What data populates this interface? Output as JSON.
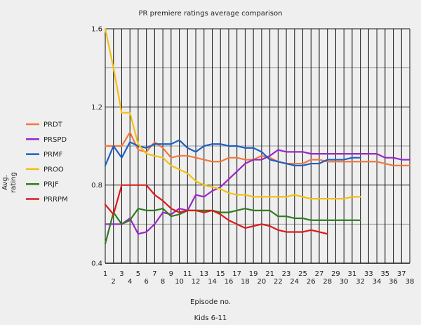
{
  "chart_data": {
    "type": "line",
    "title": "PR premiere ratings average comparison",
    "subtitle": "Kids 6-11",
    "xlabel": "Episode no.",
    "ylabel": "Avg. rating",
    "xlim": [
      1,
      38
    ],
    "ylim": [
      0.4,
      1.6
    ],
    "yticks": [
      0.4,
      0.8,
      1.2,
      1.6
    ],
    "ytick_labels": [
      "0.4",
      "0.8",
      "1.2",
      "1.6"
    ],
    "minor_y_gridlines": [
      0.6,
      1.0,
      1.4
    ],
    "x_ticks_upper_row": [
      1,
      3,
      5,
      7,
      9,
      11,
      13,
      15,
      17,
      19,
      21,
      23,
      25,
      27,
      29,
      31,
      33,
      35,
      37
    ],
    "x_ticks_lower_row": [
      2,
      4,
      6,
      8,
      10,
      12,
      14,
      16,
      18,
      20,
      22,
      24,
      26,
      28,
      30,
      32,
      34,
      36,
      38
    ],
    "grid": true,
    "legend_position": "left",
    "series": [
      {
        "name": "PRDT",
        "color": "#f4773a",
        "x": [
          1,
          2,
          3,
          4,
          5,
          6,
          7,
          8,
          9,
          10,
          11,
          12,
          13,
          14,
          15,
          16,
          17,
          18,
          19,
          20,
          21,
          22,
          23,
          24,
          25,
          26,
          27,
          28,
          29,
          30,
          31,
          32,
          33,
          34,
          35,
          36,
          37,
          38
        ],
        "values": [
          1.0,
          1.0,
          1.0,
          1.07,
          0.98,
          0.97,
          1.02,
          0.99,
          0.94,
          0.95,
          0.95,
          0.94,
          0.93,
          0.92,
          0.92,
          0.94,
          0.94,
          0.93,
          0.93,
          0.95,
          0.94,
          0.92,
          0.91,
          0.91,
          0.91,
          0.93,
          0.93,
          0.92,
          0.92,
          0.92,
          0.92,
          0.92,
          0.92,
          0.92,
          0.91,
          0.9,
          0.9,
          0.9
        ]
      },
      {
        "name": "PRSPD",
        "color": "#9b27c8",
        "x": [
          1,
          2,
          3,
          4,
          5,
          6,
          7,
          8,
          9,
          10,
          11,
          12,
          13,
          14,
          15,
          16,
          17,
          18,
          19,
          20,
          21,
          22,
          23,
          24,
          25,
          26,
          27,
          28,
          29,
          30,
          31,
          32,
          33,
          34,
          35,
          36,
          37,
          38
        ],
        "values": [
          0.6,
          0.6,
          0.6,
          0.63,
          0.55,
          0.56,
          0.6,
          0.66,
          0.65,
          0.68,
          0.67,
          0.75,
          0.74,
          0.77,
          0.79,
          0.83,
          0.87,
          0.91,
          0.93,
          0.93,
          0.95,
          0.98,
          0.97,
          0.97,
          0.97,
          0.96,
          0.96,
          0.96,
          0.96,
          0.96,
          0.96,
          0.96,
          0.96,
          0.96,
          0.94,
          0.94,
          0.93,
          0.93
        ]
      },
      {
        "name": "PRMF",
        "color": "#1e5fc4",
        "x": [
          1,
          2,
          3,
          4,
          5,
          6,
          7,
          8,
          9,
          10,
          11,
          12,
          13,
          14,
          15,
          16,
          17,
          18,
          19,
          20,
          21,
          22,
          23,
          24,
          25,
          26,
          27,
          28,
          29,
          30,
          31,
          32
        ],
        "values": [
          0.9,
          1.0,
          0.94,
          1.02,
          1.0,
          0.99,
          1.01,
          1.01,
          1.01,
          1.03,
          0.99,
          0.97,
          1.0,
          1.01,
          1.01,
          1.0,
          1.0,
          0.99,
          0.99,
          0.97,
          0.93,
          0.92,
          0.91,
          0.9,
          0.9,
          0.91,
          0.91,
          0.93,
          0.93,
          0.93,
          0.94,
          0.94
        ]
      },
      {
        "name": "PROO",
        "color": "#f2c014",
        "x": [
          1,
          2,
          3,
          4,
          5,
          6,
          7,
          8,
          9,
          10,
          11,
          12,
          13,
          14,
          15,
          16,
          17,
          18,
          19,
          20,
          21,
          22,
          23,
          24,
          25,
          26,
          27,
          28,
          29,
          30,
          31,
          32
        ],
        "values": [
          1.6,
          1.4,
          1.17,
          1.17,
          1.01,
          0.96,
          0.95,
          0.94,
          0.9,
          0.88,
          0.86,
          0.82,
          0.8,
          0.79,
          0.78,
          0.76,
          0.75,
          0.75,
          0.74,
          0.74,
          0.74,
          0.74,
          0.74,
          0.75,
          0.74,
          0.73,
          0.73,
          0.73,
          0.73,
          0.73,
          0.74,
          0.74
        ]
      },
      {
        "name": "PRJF",
        "color": "#2f7d1e",
        "x": [
          1,
          2,
          3,
          4,
          5,
          6,
          7,
          8,
          9,
          10,
          11,
          12,
          13,
          14,
          15,
          16,
          17,
          18,
          19,
          20,
          21,
          22,
          23,
          24,
          25,
          26,
          27,
          28,
          29,
          30,
          31,
          32
        ],
        "values": [
          0.5,
          0.66,
          0.6,
          0.62,
          0.68,
          0.67,
          0.67,
          0.68,
          0.64,
          0.65,
          0.67,
          0.67,
          0.67,
          0.67,
          0.66,
          0.66,
          0.67,
          0.68,
          0.67,
          0.67,
          0.67,
          0.64,
          0.64,
          0.63,
          0.63,
          0.62,
          0.62,
          0.62,
          0.62,
          0.62,
          0.62,
          0.62
        ]
      },
      {
        "name": "PRRPM",
        "color": "#e01a1a",
        "x": [
          1,
          2,
          3,
          4,
          5,
          6,
          7,
          8,
          9,
          10,
          11,
          12,
          13,
          14,
          15,
          16,
          17,
          18,
          19,
          20,
          21,
          22,
          23,
          24,
          25,
          26,
          27,
          28
        ],
        "values": [
          0.7,
          0.65,
          0.8,
          0.8,
          0.8,
          0.8,
          0.75,
          0.72,
          0.68,
          0.66,
          0.67,
          0.67,
          0.66,
          0.67,
          0.65,
          0.62,
          0.6,
          0.58,
          0.59,
          0.6,
          0.59,
          0.57,
          0.56,
          0.56,
          0.56,
          0.57,
          0.56,
          0.55
        ]
      }
    ]
  }
}
